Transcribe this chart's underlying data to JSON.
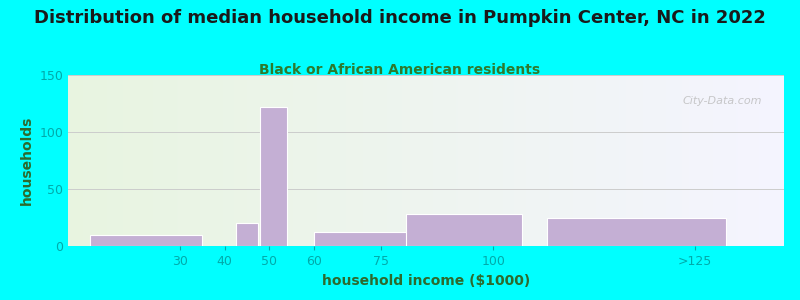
{
  "title": "Distribution of median household income in Pumpkin Center, NC in 2022",
  "subtitle": "Black or African American residents",
  "xlabel": "household income ($1000)",
  "ylabel": "households",
  "background_outer": "#00FFFF",
  "bar_color": "#c4afd4",
  "bar_edgecolor": "#ffffff",
  "bar_positions": [
    22.5,
    45,
    51,
    73.5,
    93.5,
    132
  ],
  "bar_widths": [
    25,
    5,
    6,
    27,
    26,
    40
  ],
  "bar_heights": [
    10,
    20,
    122,
    12,
    28,
    25
  ],
  "xmin": 5,
  "xmax": 165,
  "xtick_positions": [
    30,
    40,
    50,
    60,
    75,
    100,
    145
  ],
  "xtick_labels": [
    "30",
    "40",
    "50",
    "60",
    "75",
    "100",
    ">125"
  ],
  "ylim": [
    0,
    150
  ],
  "yticks": [
    0,
    50,
    100,
    150
  ],
  "title_fontsize": 13,
  "subtitle_fontsize": 10,
  "axis_label_fontsize": 10,
  "tick_fontsize": 9,
  "title_color": "#1a1a1a",
  "subtitle_color": "#2d7a2d",
  "axis_label_color": "#2d6a2d",
  "tick_color": "#00aaaa",
  "ytick_color": "#00aaaa",
  "grid_color": "#cccccc",
  "watermark_text": "City-Data.com",
  "watermark_color": "#bbbbbb",
  "bg_green": "#e8f5e0",
  "bg_white": "#f5f5ff"
}
